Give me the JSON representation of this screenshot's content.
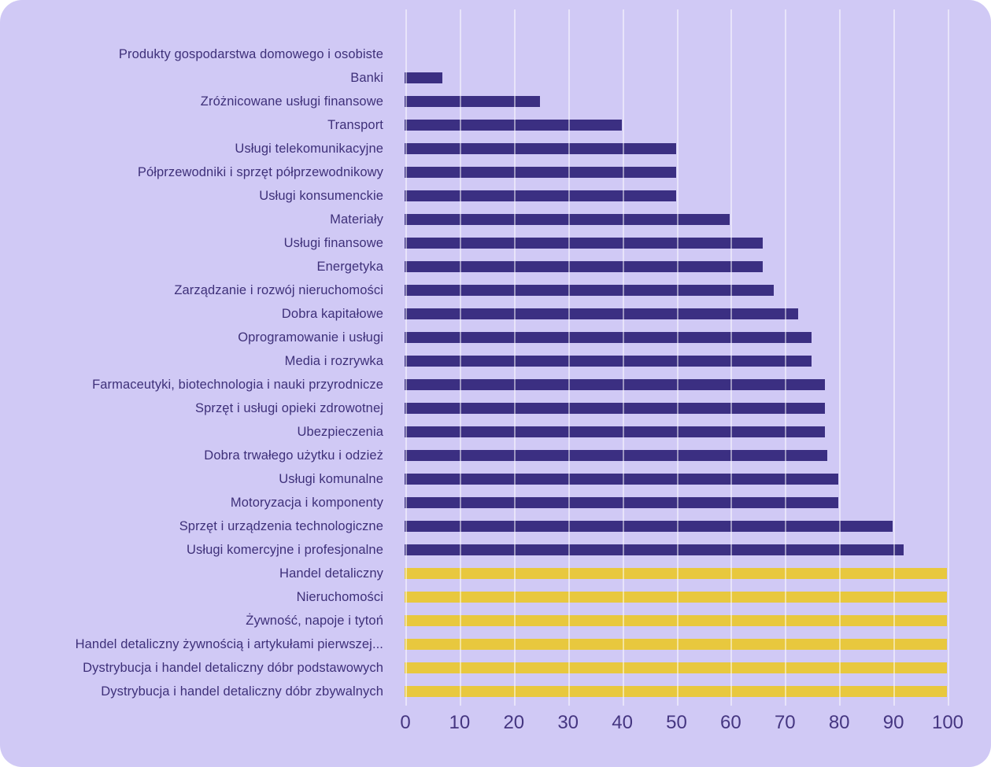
{
  "chart_data": {
    "type": "bar",
    "orientation": "horizontal",
    "title": "",
    "xlabel": "",
    "ylabel": "",
    "xlim": [
      0,
      100
    ],
    "x_ticks": [
      "0",
      "10",
      "20",
      "30",
      "40",
      "50",
      "60",
      "70",
      "80",
      "90",
      "100"
    ],
    "grid": true,
    "legend": "none",
    "categories": [
      "Produkty gospodarstwa domowego i osobiste",
      "Banki",
      "Zróżnicowane usługi finansowe",
      "Transport",
      "Usługi telekomunikacyjne",
      "Półprzewodniki i sprzęt półprzewodnikowy",
      "Usługi konsumenckie",
      "Materiały",
      "Usługi finansowe",
      "Energetyka",
      "Zarządzanie i rozwój nieruchomości",
      "Dobra kapitałowe",
      "Oprogramowanie i usługi",
      "Media i rozrywka",
      "Farmaceutyki, biotechnologia i nauki przyrodnicze",
      "Sprzęt i usługi opieki zdrowotnej",
      "Ubezpieczenia",
      "Dobra trwałego użytku i odzież",
      "Usługi komunalne",
      "Motoryzacja i komponenty",
      "Sprzęt i urządzenia technologiczne",
      "Usługi komercyjne i profesjonalne",
      "Handel detaliczny",
      "Nieruchomości",
      "Żywność, napoje i tytoń",
      "Handel detaliczny żywnością i artykułami pierwszej...",
      "Dystrybucja i handel detaliczny dóbr podstawowych",
      "Dystrybucja i handel detaliczny dóbr zbywalnych"
    ],
    "values": [
      0,
      7,
      25,
      40,
      50,
      50,
      50,
      60,
      66,
      66,
      68,
      72.5,
      75,
      75,
      77.5,
      77.5,
      77.5,
      78,
      80,
      80,
      90,
      92,
      100,
      100,
      100,
      100,
      100,
      100
    ],
    "bar_colors": [
      "#3b2f82",
      "#3b2f82",
      "#3b2f82",
      "#3b2f82",
      "#3b2f82",
      "#3b2f82",
      "#3b2f82",
      "#3b2f82",
      "#3b2f82",
      "#3b2f82",
      "#3b2f82",
      "#3b2f82",
      "#3b2f82",
      "#3b2f82",
      "#3b2f82",
      "#3b2f82",
      "#3b2f82",
      "#3b2f82",
      "#3b2f82",
      "#3b2f82",
      "#3b2f82",
      "#3b2f82",
      "#e8c83e",
      "#e8c83e",
      "#e8c83e",
      "#e8c83e",
      "#e8c83e",
      "#e8c83e"
    ]
  },
  "colors": {
    "panel_background": "#d0c9f5",
    "bar_primary": "#3b2f82",
    "bar_highlight": "#e8c83e",
    "gridline": "rgba(255,255,255,0.5)",
    "label_text": "#3e3079",
    "tick_text": "#453681"
  }
}
